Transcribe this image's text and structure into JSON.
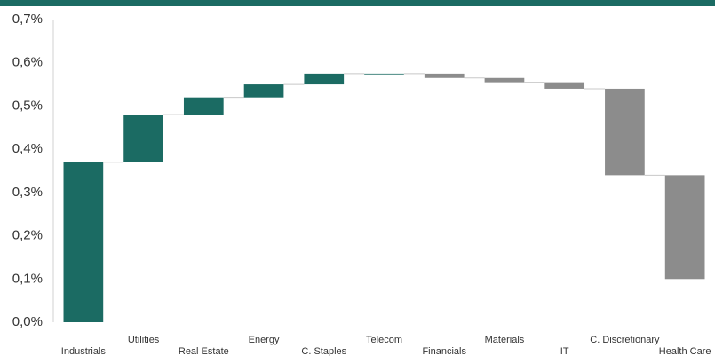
{
  "chart_data": {
    "type": "waterfall",
    "categories": [
      "Industrials",
      "Utilities",
      "Real Estate",
      "Energy",
      "C. Staples",
      "Telecom",
      "Financials",
      "Materials",
      "IT",
      "C. Discretionary",
      "Health Care"
    ],
    "values": [
      0.37,
      0.11,
      0.04,
      0.03,
      0.025,
      0,
      -0.01,
      -0.01,
      -0.015,
      -0.2,
      -0.24
    ],
    "up_color": "#1b6b63",
    "down_color": "#8c8c8c",
    "ylim": [
      0,
      0.7
    ],
    "yticks": [
      {
        "value": 0,
        "label": "0,0%"
      },
      {
        "value": 0.1,
        "label": "0,1%"
      },
      {
        "value": 0.2,
        "label": "0,2%"
      },
      {
        "value": 0.3,
        "label": "0,3%"
      },
      {
        "value": 0.4,
        "label": "0,4%"
      },
      {
        "value": 0.5,
        "label": "0,5%"
      },
      {
        "value": 0.6,
        "label": "0,6%"
      },
      {
        "value": 0.7,
        "label": "0,7%"
      }
    ]
  }
}
